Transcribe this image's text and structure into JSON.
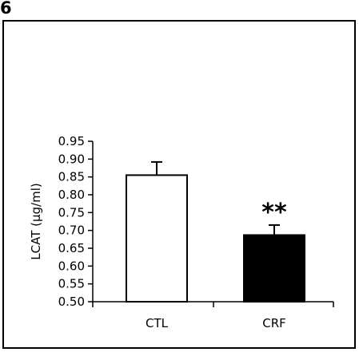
{
  "panel_label": "6",
  "chart_data": {
    "type": "bar",
    "categories": [
      "CTL",
      "CRF"
    ],
    "values": [
      0.855,
      0.687
    ],
    "errors": [
      0.037,
      0.028
    ],
    "bar_fills": [
      "#ffffff",
      "#000000"
    ],
    "annotations": [
      "",
      "**"
    ],
    "ylabel": "LCAT (µg/ml)",
    "ylim": [
      0.5,
      0.95
    ],
    "yticks": [
      "0.50",
      "0.55",
      "0.60",
      "0.65",
      "0.70",
      "0.75",
      "0.80",
      "0.85",
      "0.90",
      "0.95"
    ],
    "grid": false
  }
}
